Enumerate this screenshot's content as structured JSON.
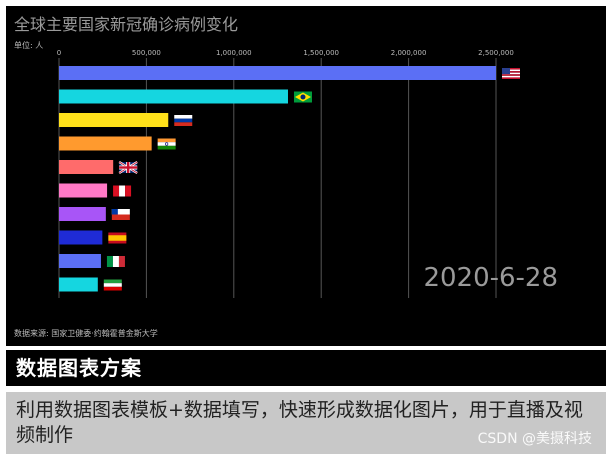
{
  "colors": {
    "background": "#000000",
    "grid": "#555555",
    "axis_text": "#bbbbbb",
    "title_text": "#9a9a9a",
    "date_text": "#9a9a9a"
  },
  "chart_data": {
    "type": "bar",
    "orientation": "horizontal",
    "title": "全球主要国家新冠确诊病例变化",
    "unit_label": "单位: 人",
    "date_label": "2020-6-28",
    "source": "数据来源: 国家卫健委·约翰霍普金斯大学",
    "xlim": [
      0,
      2500000
    ],
    "ticks": [
      0,
      500000,
      1000000,
      1500000,
      2000000,
      2500000
    ],
    "tick_labels": [
      "0",
      "500,000",
      "1,000,000",
      "1,500,000",
      "2,000,000",
      "2,500,000"
    ],
    "grid": true,
    "categories": [
      "美国",
      "巴西",
      "俄罗斯",
      "印度",
      "英国",
      "秘鲁",
      "智利",
      "西班牙",
      "意大利",
      "伊朗"
    ],
    "values": [
      2500000,
      1310000,
      625000,
      530000,
      310000,
      275000,
      268000,
      248000,
      240000,
      222000
    ],
    "bar_colors": [
      "#5b6ff5",
      "#15d6e0",
      "#ffe11a",
      "#ff9a2e",
      "#ff6b6b",
      "#ff79c6",
      "#a855f7",
      "#1f2bd6",
      "#5b6ff5",
      "#15d6e0"
    ],
    "flags": [
      "us-flag-icon",
      "brazil-flag-icon",
      "russia-flag-icon",
      "india-flag-icon",
      "uk-flag-icon",
      "peru-flag-icon",
      "chile-flag-icon",
      "spain-flag-icon",
      "italy-flag-icon",
      "iran-flag-icon"
    ]
  },
  "banner": {
    "title": "数据图表方案"
  },
  "description": {
    "text": "利用数据图表模板+数据填写，快速形成数据化图片，用于直播及视频制作"
  },
  "watermark": {
    "text": "CSDN @美摄科技"
  }
}
